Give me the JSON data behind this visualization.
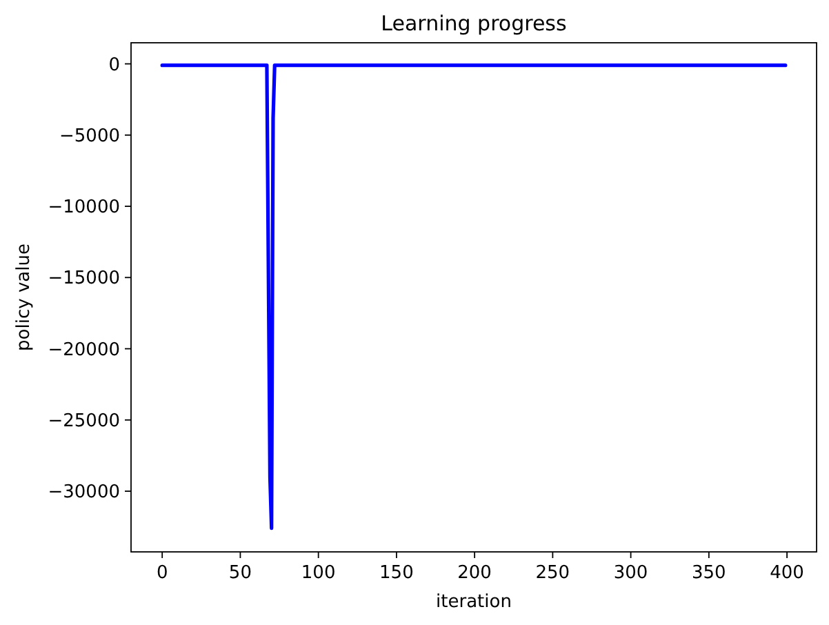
{
  "chart_data": {
    "type": "line",
    "title": "Learning progress",
    "xlabel": "iteration",
    "ylabel": "policy value",
    "series": [
      {
        "color": "#0000ff",
        "x": [
          0,
          67,
          69,
          70,
          71,
          72,
          399
        ],
        "values": [
          -100,
          -100,
          -29000,
          -32600,
          -3800,
          -100,
          -100
        ]
      }
    ],
    "xlim": [
      -19.95,
      418.95
    ],
    "ylim": [
      -34260,
      1480
    ],
    "xticks": [
      0,
      50,
      100,
      150,
      200,
      250,
      300,
      350,
      400
    ],
    "yticks": [
      -30000,
      -25000,
      -20000,
      -15000,
      -10000,
      -5000,
      0
    ],
    "line_style": "solid"
  }
}
